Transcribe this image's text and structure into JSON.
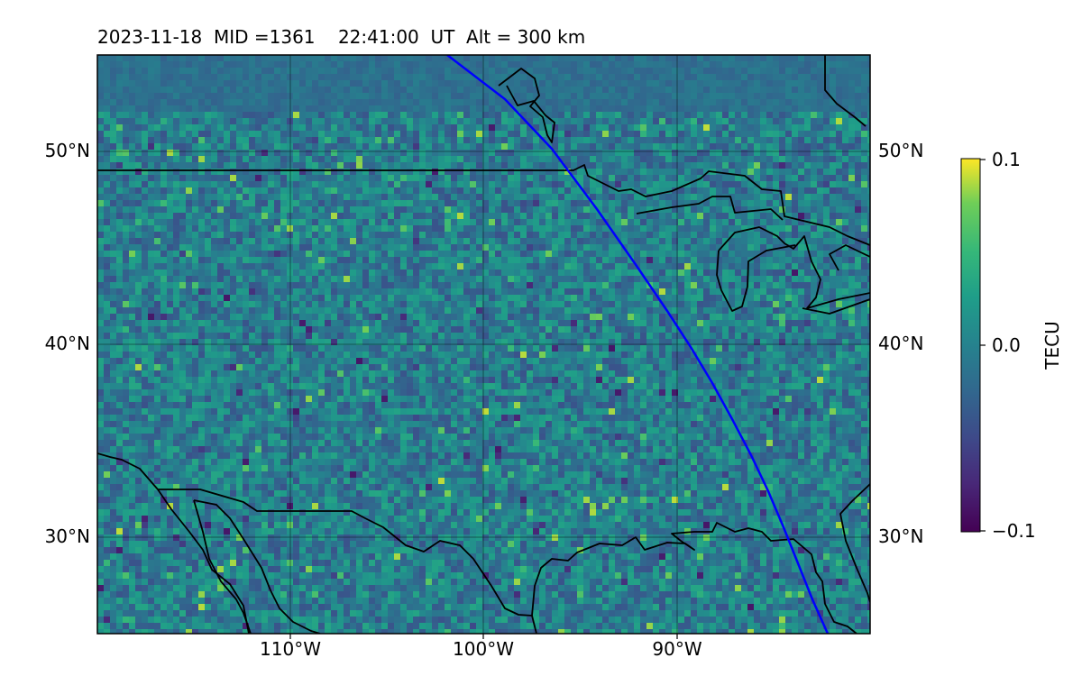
{
  "title": "2023-11-18  MID =1361    22:41:00  UT  Alt = 300 km",
  "map": {
    "lon_range": [
      -120,
      -80
    ],
    "lat_range": [
      25,
      55
    ],
    "lat_ticks": [
      "50°N",
      "40°N",
      "30°N"
    ],
    "lon_ticks": [
      "110°W",
      "100°W",
      "90°W"
    ],
    "gridlines": true,
    "field": "TEC perturbation (dTEC) grid, noisy mottled pattern mostly near 0",
    "path_color": "#0000ff",
    "coastline_color": "#000000"
  },
  "colorbar": {
    "label": "TECU",
    "colormap": "viridis",
    "vmin": -0.1,
    "vmax": 0.1,
    "ticks": [
      "0.1",
      "0.0",
      "−0.1"
    ]
  }
}
